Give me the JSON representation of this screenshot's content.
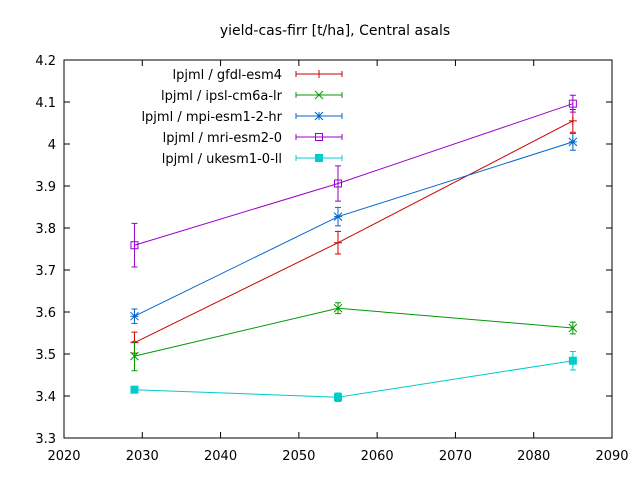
{
  "chart_data": {
    "type": "line",
    "title": "yield-cas-firr [t/ha], Central asals",
    "xlabel": "",
    "ylabel": "",
    "xlim": [
      2020,
      2090
    ],
    "ylim": [
      3.3,
      4.2
    ],
    "xticks": [
      2020,
      2030,
      2040,
      2050,
      2060,
      2070,
      2080,
      2090
    ],
    "yticks": [
      3.3,
      3.4,
      3.5,
      3.6,
      3.7,
      3.8,
      3.9,
      4.0,
      4.1,
      4.2
    ],
    "xtick_labels": [
      "2020",
      "2030",
      "2040",
      "2050",
      "2060",
      "2070",
      "2080",
      "2090"
    ],
    "ytick_labels": [
      "3.3",
      "3.4",
      "3.5",
      "3.6",
      "3.7",
      "3.8",
      "3.9",
      "4",
      "4.1",
      "4.2"
    ],
    "grid": false,
    "legend_position": "top-left",
    "x": [
      2029,
      2055,
      2085
    ],
    "series": [
      {
        "name": "lpjml / gfdl-esm4",
        "color": "#cc0000",
        "marker": "plus",
        "values": [
          3.527,
          3.765,
          4.055
        ],
        "errors": [
          0.025,
          0.027,
          0.027
        ]
      },
      {
        "name": "lpjml / ipsl-cm6a-lr",
        "color": "#009900",
        "marker": "x",
        "values": [
          3.495,
          3.609,
          3.562
        ],
        "errors": [
          0.035,
          0.013,
          0.014
        ]
      },
      {
        "name": "lpjml / mpi-esm1-2-hr",
        "color": "#0066cc",
        "marker": "star",
        "values": [
          3.59,
          3.827,
          4.005
        ],
        "errors": [
          0.017,
          0.022,
          0.02
        ]
      },
      {
        "name": "lpjml / mri-esm2-0",
        "color": "#9900cc",
        "marker": "square-open",
        "values": [
          3.759,
          3.906,
          4.096
        ],
        "errors": [
          0.052,
          0.042,
          0.02
        ]
      },
      {
        "name": "lpjml / ukesm1-0-ll",
        "color": "#00cccc",
        "marker": "square-filled",
        "values": [
          3.415,
          3.397,
          3.484
        ],
        "errors": [
          0.008,
          0.01,
          0.022
        ]
      }
    ]
  }
}
